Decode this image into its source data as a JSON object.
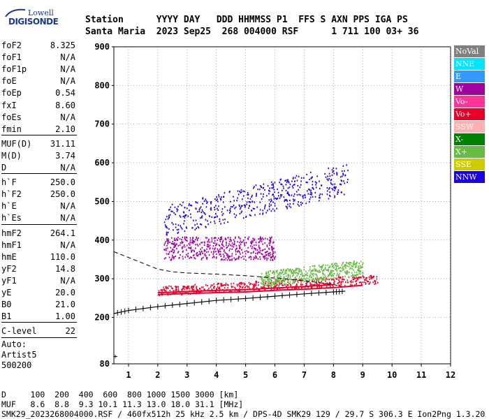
{
  "logo": {
    "line1": "Lowell",
    "line2": "DIGISONDE"
  },
  "header": {
    "line1": "Station      YYYY DAY   DDD HHMMSS P1  FFS S AXN PPS IGA PS",
    "line2": "Santa Maria  2023 Sep25  268 004000 RSF      1 711 100 03+ 36"
  },
  "params": [
    {
      "k": "foF2",
      "v": "8.325"
    },
    {
      "k": "foF1",
      "v": "N/A"
    },
    {
      "k": "foF1p",
      "v": "N/A"
    },
    {
      "k": "foE",
      "v": "N/A"
    },
    {
      "k": "foEp",
      "v": "0.54"
    },
    {
      "k": "fxI",
      "v": "8.60"
    },
    {
      "k": "foEs",
      "v": "N/A"
    },
    {
      "k": "fmin",
      "v": "2.10"
    },
    {
      "k": "MUF(D)",
      "v": "31.11"
    },
    {
      "k": "M(D)",
      "v": "3.74"
    },
    {
      "k": "D",
      "v": "N/A"
    },
    {
      "k": "h`F",
      "v": "250.0"
    },
    {
      "k": "h`F2",
      "v": "250.0"
    },
    {
      "k": "h`E",
      "v": "N/A"
    },
    {
      "k": "h`Es",
      "v": "N/A"
    },
    {
      "k": "hmF2",
      "v": "264.1"
    },
    {
      "k": "hmF1",
      "v": "N/A"
    },
    {
      "k": "hmE",
      "v": "110.0"
    },
    {
      "k": "yF2",
      "v": "14.8"
    },
    {
      "k": "yF1",
      "v": "N/A"
    },
    {
      "k": "yE",
      "v": "20.0"
    },
    {
      "k": "B0",
      "v": "21.0"
    },
    {
      "k": "B1",
      "v": "1.00"
    },
    {
      "k": "C-level",
      "v": "22"
    }
  ],
  "auto": {
    "l1": "Auto:",
    "l2": "Artist5",
    "l3": "500200"
  },
  "legend": [
    {
      "label": "NoVal",
      "color": "#808080"
    },
    {
      "label": "NNE",
      "color": "#00e5ff"
    },
    {
      "label": "E",
      "color": "#3399ff"
    },
    {
      "label": "W",
      "color": "#a000a0"
    },
    {
      "label": "Vo-",
      "color": "#ff3399"
    },
    {
      "label": "Vo+",
      "color": "#e8002a"
    },
    {
      "label": "SSW",
      "color": "#ffb0b0"
    },
    {
      "label": "X-",
      "color": "#008000"
    },
    {
      "label": "X+",
      "color": "#66bb44"
    },
    {
      "label": "SSE",
      "color": "#cccc00"
    },
    {
      "label": "NNW",
      "color": "#1a00e0"
    }
  ],
  "footer": {
    "line1": "D     100  200  400  600  800 1000 1500 3000 [km]",
    "line2": "MUF   8.6  8.8  9.3 10.1 11.3 13.0 18.0 31.1 [MHz]",
    "line3": "SMK29_2023268004000.RSF / 460fx512h 25 kHz 2.5 km / DPS-4D SMK29 129 / 29.7 S 306.3 E Ion2Png 1.3.20"
  },
  "chart_data": {
    "type": "scatter",
    "title": "",
    "xlabel": "",
    "ylabel": "",
    "xlim": [
      0.5,
      12
    ],
    "ylim": [
      80,
      900
    ],
    "xticks": [
      1,
      2,
      3,
      4,
      5,
      6,
      7,
      8,
      9,
      10,
      11,
      12
    ],
    "yticks": [
      80,
      200,
      300,
      400,
      500,
      600,
      700,
      800,
      900
    ],
    "grid": "dotted at y ticks",
    "legend_position": "right",
    "series": [
      {
        "name": "NNW",
        "x_range": [
          2.2,
          8.5
        ],
        "y_center": [
          450,
          560
        ],
        "spread": 40
      },
      {
        "name": "Vo+",
        "x_range": [
          2.0,
          9.5
        ],
        "y_center": [
          270,
          300
        ],
        "spread": 12
      },
      {
        "name": "W",
        "x_range": [
          2.2,
          6.0
        ],
        "y_center": [
          380,
          380
        ],
        "spread": 30
      },
      {
        "name": "X+",
        "x_range": [
          5.5,
          9.0
        ],
        "y_center": [
          300,
          330
        ],
        "spread": 20
      }
    ],
    "profile_line": {
      "x": [
        0.5,
        1.0,
        2.0,
        3.0,
        4.0,
        5.0,
        6.0,
        7.0,
        8.0,
        8.4
      ],
      "y": [
        210,
        218,
        228,
        236,
        244,
        249,
        255,
        261,
        266,
        268
      ]
    },
    "dashed_line": {
      "x": [
        0.5,
        1.0,
        1.5,
        2.0,
        2.5,
        3.0,
        4.0,
        5.0,
        6.0,
        7.0,
        8.0,
        8.3
      ],
      "y": [
        370,
        355,
        340,
        325,
        318,
        315,
        312,
        308,
        302,
        295,
        285,
        280
      ]
    },
    "trace_lines": [
      {
        "x": [
          2.0,
          3.0,
          4.0,
          5.0,
          6.0,
          7.0,
          8.0,
          9.0
        ],
        "y": [
          259,
          262,
          264,
          266,
          270,
          273,
          277,
          283
        ]
      },
      {
        "x": [
          2.0,
          3.0,
          4.0,
          5.0,
          6.0,
          7.0,
          8.0
        ],
        "y": [
          264,
          267,
          270,
          272,
          276,
          280,
          285
        ]
      }
    ]
  }
}
